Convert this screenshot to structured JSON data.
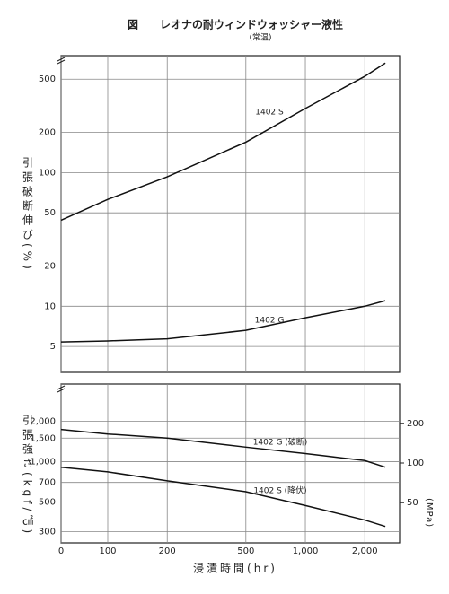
{
  "chart_data": [
    {
      "type": "line",
      "title": "図　　レオナの耐ウィンドウォッシャー液性",
      "subtitle": "(常温)",
      "ylabel": "引張破断伸び(%)",
      "ylog": true,
      "ylim": [
        3.2,
        750
      ],
      "yticks": [
        5,
        10,
        20,
        50,
        100,
        200,
        500
      ],
      "grid": true,
      "x": [
        0,
        100,
        200,
        500,
        1000,
        2000,
        2540
      ],
      "series": [
        {
          "name": "1402 S",
          "color": "#111111",
          "values": [
            44,
            63,
            93,
            169,
            302,
            525,
            660
          ]
        },
        {
          "name": "1402 G",
          "color": "#111111",
          "values": [
            5.4,
            5.5,
            5.7,
            6.6,
            8.2,
            10,
            11
          ]
        }
      ]
    },
    {
      "type": "line",
      "xlabel": "浸漬時間(hr)",
      "ylabel": "引張強さ(kgf/㎠)",
      "y2label": "(MPa)",
      "xlog": true,
      "xlim": [
        0,
        3000
      ],
      "xticks": [
        0,
        100,
        200,
        500,
        {
          "value": 1000,
          "label": "1,000"
        },
        {
          "value": 2000,
          "label": "2,000"
        }
      ],
      "ylog": true,
      "ylim": [
        248,
        3800
      ],
      "yticks": [
        300,
        500,
        700,
        {
          "value": 1000,
          "label": "1,000"
        },
        {
          "value": 1500,
          "label": "1,500"
        },
        {
          "value": 2000,
          "label": "2,000"
        }
      ],
      "y2lim": [
        24.8,
        397
      ],
      "y2ticks": [
        50,
        100,
        200
      ],
      "grid": true,
      "x": [
        0,
        100,
        200,
        500,
        1000,
        2000,
        2540
      ],
      "series": [
        {
          "name": "1402 G (破断)",
          "color": "#111111",
          "values": [
            1740,
            1610,
            1500,
            1285,
            1150,
            1020,
            910
          ]
        },
        {
          "name": "1402 S (降伏)",
          "color": "#111111",
          "values": [
            910,
            840,
            720,
            597,
            471,
            367,
            329
          ]
        }
      ]
    }
  ]
}
